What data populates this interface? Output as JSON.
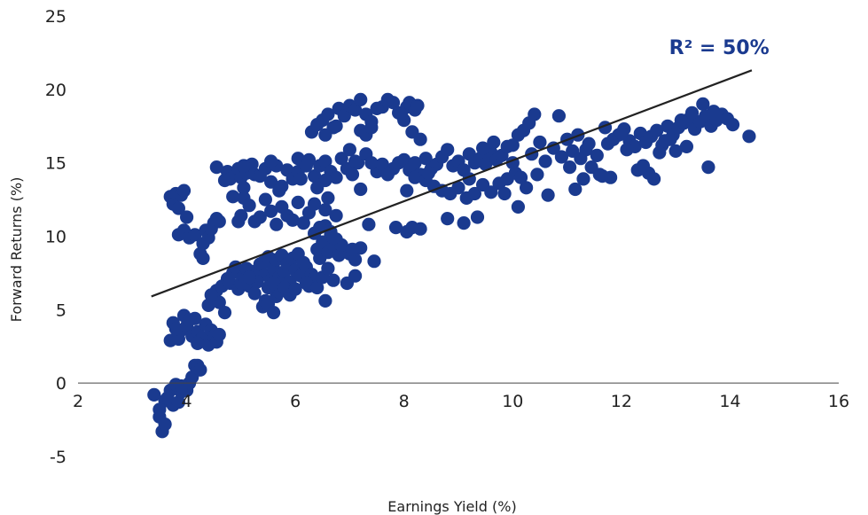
{
  "chart_data": {
    "type": "scatter",
    "xlabel": "Earnings Yield (%)",
    "ylabel": "Forward Returns (%)",
    "xlim": [
      2,
      16
    ],
    "ylim": [
      -5,
      25
    ],
    "xticks": [
      2,
      4,
      6,
      8,
      10,
      12,
      14,
      16
    ],
    "yticks": [
      -5,
      0,
      5,
      10,
      15,
      20,
      25
    ],
    "xtick_labels": [
      "2",
      "4",
      "6",
      "8",
      "10",
      "12",
      "14",
      "16"
    ],
    "ytick_labels": [
      "-5",
      "0",
      "5",
      "10",
      "15",
      "20",
      "25"
    ],
    "grid": false,
    "point_color": "#1a3a8f",
    "trendline": {
      "x": [
        3.35,
        14.4
      ],
      "y": [
        5.9,
        21.3
      ],
      "color": "#222222"
    },
    "annotation": {
      "text": "R² = 50%",
      "x": 13.8,
      "y": 22.9
    },
    "points": [
      [
        3.4,
        -0.8
      ],
      [
        3.5,
        -2.3
      ],
      [
        3.55,
        -3.3
      ],
      [
        3.6,
        -1.2
      ],
      [
        3.5,
        -1.8
      ],
      [
        3.6,
        -2.8
      ],
      [
        3.7,
        -0.5
      ],
      [
        3.75,
        -1.5
      ],
      [
        3.8,
        -0.3
      ],
      [
        3.65,
        -1.0
      ],
      [
        3.85,
        -1.3
      ],
      [
        3.9,
        -0.6
      ],
      [
        4.0,
        -0.5
      ],
      [
        4.05,
        0.0
      ],
      [
        4.1,
        0.4
      ],
      [
        4.15,
        1.2
      ],
      [
        4.2,
        1.2
      ],
      [
        4.25,
        0.9
      ],
      [
        3.8,
        -0.1
      ],
      [
        3.9,
        -0.2
      ],
      [
        3.7,
        2.9
      ],
      [
        3.75,
        4.1
      ],
      [
        3.85,
        3.0
      ],
      [
        3.9,
        3.6
      ],
      [
        3.95,
        4.6
      ],
      [
        4.0,
        3.9
      ],
      [
        4.1,
        3.2
      ],
      [
        4.15,
        4.4
      ],
      [
        4.2,
        3.5
      ],
      [
        4.25,
        2.9
      ],
      [
        4.3,
        3.1
      ],
      [
        4.35,
        4.0
      ],
      [
        4.4,
        2.6
      ],
      [
        4.45,
        3.6
      ],
      [
        4.5,
        3.2
      ],
      [
        4.55,
        2.8
      ],
      [
        4.6,
        3.3
      ],
      [
        4.05,
        4.3
      ],
      [
        3.8,
        3.7
      ],
      [
        4.2,
        2.7
      ],
      [
        3.7,
        12.7
      ],
      [
        3.75,
        12.2
      ],
      [
        3.8,
        12.9
      ],
      [
        3.85,
        11.9
      ],
      [
        3.9,
        12.8
      ],
      [
        3.95,
        13.1
      ],
      [
        4.0,
        11.3
      ],
      [
        3.85,
        10.1
      ],
      [
        3.95,
        10.4
      ],
      [
        4.05,
        9.9
      ],
      [
        4.15,
        10.1
      ],
      [
        4.25,
        8.8
      ],
      [
        4.3,
        8.5
      ],
      [
        4.35,
        10.4
      ],
      [
        4.4,
        9.9
      ],
      [
        4.45,
        10.5
      ],
      [
        4.5,
        10.9
      ],
      [
        4.55,
        11.2
      ],
      [
        4.3,
        9.5
      ],
      [
        4.6,
        11.0
      ],
      [
        4.4,
        5.3
      ],
      [
        4.5,
        5.8
      ],
      [
        4.55,
        6.3
      ],
      [
        4.6,
        5.5
      ],
      [
        4.65,
        6.6
      ],
      [
        4.7,
        4.8
      ],
      [
        4.75,
        7.1
      ],
      [
        4.8,
        6.8
      ],
      [
        4.85,
        7.5
      ],
      [
        4.9,
        7.9
      ],
      [
        4.95,
        6.4
      ],
      [
        5.0,
        6.8
      ],
      [
        5.05,
        7.3
      ],
      [
        5.1,
        7.8
      ],
      [
        5.15,
        6.6
      ],
      [
        5.2,
        7.6
      ],
      [
        5.25,
        6.9
      ],
      [
        5.3,
        7.5
      ],
      [
        5.35,
        8.1
      ],
      [
        4.45,
        6.0
      ],
      [
        5.4,
        8.2
      ],
      [
        5.45,
        7.4
      ],
      [
        5.5,
        8.6
      ],
      [
        5.55,
        7.0
      ],
      [
        5.6,
        7.8
      ],
      [
        5.65,
        8.4
      ],
      [
        5.7,
        7.2
      ],
      [
        5.75,
        8.7
      ],
      [
        5.8,
        7.6
      ],
      [
        5.85,
        8.1
      ],
      [
        5.9,
        6.9
      ],
      [
        5.95,
        8.5
      ],
      [
        6.0,
        7.7
      ],
      [
        6.05,
        8.8
      ],
      [
        6.1,
        7.3
      ],
      [
        6.15,
        8.2
      ],
      [
        6.2,
        7.9
      ],
      [
        6.25,
        6.6
      ],
      [
        6.3,
        7.4
      ],
      [
        6.35,
        7.1
      ],
      [
        5.4,
        5.2
      ],
      [
        5.45,
        5.6
      ],
      [
        5.5,
        5.4
      ],
      [
        5.6,
        4.8
      ],
      [
        5.65,
        5.9
      ],
      [
        5.7,
        6.2
      ],
      [
        5.5,
        6.5
      ],
      [
        5.3,
        6.9
      ],
      [
        5.25,
        6.1
      ],
      [
        5.15,
        7.2
      ],
      [
        5.6,
        6.8
      ],
      [
        5.8,
        6.5
      ],
      [
        5.9,
        6.0
      ],
      [
        6.0,
        6.4
      ],
      [
        6.2,
        6.8
      ],
      [
        6.4,
        6.5
      ],
      [
        6.5,
        7.2
      ],
      [
        6.6,
        7.8
      ],
      [
        6.7,
        7.0
      ],
      [
        6.55,
        5.6
      ],
      [
        6.4,
        9.1
      ],
      [
        6.45,
        8.5
      ],
      [
        6.5,
        9.6
      ],
      [
        6.6,
        8.9
      ],
      [
        6.7,
        9.4
      ],
      [
        6.8,
        8.7
      ],
      [
        6.9,
        9.0
      ],
      [
        7.0,
        8.8
      ],
      [
        7.1,
        8.4
      ],
      [
        7.2,
        9.2
      ],
      [
        6.35,
        10.2
      ],
      [
        6.55,
        10.7
      ],
      [
        6.65,
        10.1
      ],
      [
        6.75,
        9.8
      ],
      [
        6.85,
        9.4
      ],
      [
        7.05,
        9.1
      ],
      [
        7.45,
        8.3
      ],
      [
        6.95,
        6.8
      ],
      [
        7.1,
        7.3
      ],
      [
        6.7,
        9.9
      ],
      [
        5.0,
        11.4
      ],
      [
        5.05,
        12.6
      ],
      [
        5.15,
        12.1
      ],
      [
        5.25,
        11.0
      ],
      [
        5.35,
        11.3
      ],
      [
        5.45,
        12.5
      ],
      [
        5.55,
        11.7
      ],
      [
        5.65,
        10.8
      ],
      [
        5.75,
        12.0
      ],
      [
        5.85,
        11.4
      ],
      [
        5.95,
        11.1
      ],
      [
        6.05,
        12.3
      ],
      [
        6.15,
        10.9
      ],
      [
        6.25,
        11.6
      ],
      [
        6.35,
        12.2
      ],
      [
        6.45,
        10.6
      ],
      [
        6.55,
        11.8
      ],
      [
        6.65,
        10.3
      ],
      [
        6.75,
        11.4
      ],
      [
        4.95,
        11.0
      ],
      [
        4.7,
        13.8
      ],
      [
        4.75,
        14.4
      ],
      [
        4.8,
        13.9
      ],
      [
        4.85,
        12.7
      ],
      [
        4.9,
        14.2
      ],
      [
        4.95,
        14.6
      ],
      [
        5.0,
        14.0
      ],
      [
        5.05,
        13.3
      ],
      [
        5.1,
        14.3
      ],
      [
        5.2,
        14.9
      ],
      [
        5.25,
        14.2
      ],
      [
        5.35,
        14.1
      ],
      [
        5.45,
        14.6
      ],
      [
        5.55,
        13.7
      ],
      [
        5.65,
        14.8
      ],
      [
        5.75,
        13.4
      ],
      [
        5.85,
        14.5
      ],
      [
        5.95,
        13.9
      ],
      [
        6.05,
        14.4
      ],
      [
        6.15,
        15.0
      ],
      [
        6.25,
        15.2
      ],
      [
        6.35,
        14.1
      ],
      [
        6.45,
        14.8
      ],
      [
        6.55,
        15.1
      ],
      [
        6.65,
        14.4
      ],
      [
        6.75,
        14.0
      ],
      [
        6.85,
        15.3
      ],
      [
        6.95,
        14.6
      ],
      [
        7.05,
        14.2
      ],
      [
        7.15,
        15.0
      ],
      [
        4.55,
        14.7
      ],
      [
        5.05,
        14.8
      ],
      [
        5.55,
        15.1
      ],
      [
        6.05,
        15.3
      ],
      [
        6.55,
        13.8
      ],
      [
        6.6,
        12.6
      ],
      [
        6.4,
        13.3
      ],
      [
        6.1,
        13.9
      ],
      [
        5.7,
        13.1
      ],
      [
        6.2,
        14.8
      ],
      [
        6.3,
        17.1
      ],
      [
        6.4,
        17.6
      ],
      [
        6.5,
        17.9
      ],
      [
        6.6,
        18.3
      ],
      [
        6.7,
        17.4
      ],
      [
        6.8,
        18.7
      ],
      [
        6.9,
        18.2
      ],
      [
        7.0,
        18.9
      ],
      [
        7.1,
        18.6
      ],
      [
        7.2,
        19.3
      ],
      [
        7.3,
        18.3
      ],
      [
        7.4,
        17.8
      ],
      [
        7.2,
        17.2
      ],
      [
        7.3,
        16.9
      ],
      [
        7.4,
        17.4
      ],
      [
        6.75,
        17.5
      ],
      [
        6.55,
        16.9
      ],
      [
        7.8,
        19.1
      ],
      [
        7.9,
        18.4
      ],
      [
        8.0,
        17.9
      ],
      [
        8.05,
        18.8
      ],
      [
        8.1,
        19.1
      ],
      [
        8.2,
        18.6
      ],
      [
        8.25,
        18.9
      ],
      [
        8.15,
        17.1
      ],
      [
        8.3,
        16.6
      ],
      [
        7.7,
        19.3
      ],
      [
        7.6,
        18.8
      ],
      [
        7.95,
        18.3
      ],
      [
        7.5,
        18.7
      ],
      [
        7.0,
        15.9
      ],
      [
        7.1,
        15.1
      ],
      [
        7.3,
        15.6
      ],
      [
        7.5,
        14.4
      ],
      [
        7.6,
        14.9
      ],
      [
        7.8,
        14.6
      ],
      [
        7.9,
        15.0
      ],
      [
        8.0,
        15.2
      ],
      [
        7.7,
        14.2
      ],
      [
        7.4,
        15.0
      ],
      [
        8.1,
        14.5
      ],
      [
        8.2,
        15.0
      ],
      [
        8.3,
        14.2
      ],
      [
        8.4,
        15.3
      ],
      [
        8.5,
        14.6
      ],
      [
        8.6,
        14.9
      ],
      [
        8.7,
        15.4
      ],
      [
        8.8,
        15.9
      ],
      [
        8.9,
        14.8
      ],
      [
        9.0,
        15.1
      ],
      [
        9.1,
        14.5
      ],
      [
        9.2,
        15.6
      ],
      [
        9.3,
        15.0
      ],
      [
        9.4,
        15.3
      ],
      [
        9.5,
        14.9
      ],
      [
        9.6,
        15.7
      ],
      [
        9.7,
        15.2
      ],
      [
        9.8,
        15.5
      ],
      [
        9.9,
        16.1
      ],
      [
        10.0,
        15.0
      ],
      [
        8.2,
        14.0
      ],
      [
        8.4,
        13.8
      ],
      [
        8.55,
        13.4
      ],
      [
        8.7,
        13.1
      ],
      [
        8.85,
        12.9
      ],
      [
        9.0,
        13.3
      ],
      [
        9.15,
        12.6
      ],
      [
        9.3,
        12.9
      ],
      [
        9.45,
        13.5
      ],
      [
        9.6,
        13.0
      ],
      [
        9.75,
        13.6
      ],
      [
        9.9,
        13.9
      ],
      [
        10.05,
        14.3
      ],
      [
        10.15,
        14.0
      ],
      [
        10.25,
        13.3
      ],
      [
        8.05,
        13.1
      ],
      [
        7.2,
        13.2
      ],
      [
        8.45,
        14.3
      ],
      [
        9.2,
        13.9
      ],
      [
        9.85,
        12.9
      ],
      [
        7.85,
        10.6
      ],
      [
        8.05,
        10.3
      ],
      [
        8.15,
        10.6
      ],
      [
        8.3,
        10.5
      ],
      [
        8.8,
        11.2
      ],
      [
        9.1,
        10.9
      ],
      [
        9.35,
        11.3
      ],
      [
        10.1,
        12.0
      ],
      [
        7.35,
        10.8
      ],
      [
        10.65,
        12.8
      ],
      [
        10.0,
        16.2
      ],
      [
        10.1,
        16.9
      ],
      [
        10.2,
        17.2
      ],
      [
        10.3,
        17.7
      ],
      [
        10.4,
        18.3
      ],
      [
        10.5,
        16.4
      ],
      [
        10.6,
        15.1
      ],
      [
        10.75,
        16.0
      ],
      [
        10.9,
        15.4
      ],
      [
        11.0,
        16.6
      ],
      [
        11.1,
        15.8
      ],
      [
        11.2,
        16.9
      ],
      [
        11.25,
        15.3
      ],
      [
        11.35,
        15.9
      ],
      [
        11.45,
        14.7
      ],
      [
        11.55,
        15.5
      ],
      [
        11.65,
        14.1
      ],
      [
        11.75,
        16.3
      ],
      [
        11.85,
        16.6
      ],
      [
        11.95,
        16.9
      ],
      [
        12.05,
        17.3
      ],
      [
        12.15,
        16.5
      ],
      [
        12.25,
        16.1
      ],
      [
        12.35,
        17.0
      ],
      [
        12.45,
        16.4
      ],
      [
        12.55,
        16.8
      ],
      [
        12.65,
        17.2
      ],
      [
        12.75,
        16.2
      ],
      [
        12.85,
        17.5
      ],
      [
        12.95,
        16.9
      ],
      [
        13.05,
        17.4
      ],
      [
        13.15,
        17.7
      ],
      [
        13.25,
        18.0
      ],
      [
        13.35,
        17.3
      ],
      [
        13.45,
        17.8
      ],
      [
        13.55,
        18.2
      ],
      [
        13.65,
        17.5
      ],
      [
        13.75,
        17.9
      ],
      [
        13.85,
        18.3
      ],
      [
        13.95,
        18.0
      ],
      [
        14.05,
        17.6
      ],
      [
        13.7,
        18.5
      ],
      [
        13.5,
        19.0
      ],
      [
        13.3,
        18.4
      ],
      [
        13.1,
        17.9
      ],
      [
        12.9,
        16.6
      ],
      [
        12.5,
        14.3
      ],
      [
        12.6,
        13.9
      ],
      [
        11.3,
        13.9
      ],
      [
        11.15,
        13.2
      ],
      [
        10.85,
        18.2
      ],
      [
        11.05,
        14.7
      ],
      [
        11.4,
        16.3
      ],
      [
        11.6,
        14.2
      ],
      [
        11.8,
        14.0
      ],
      [
        12.1,
        15.9
      ],
      [
        12.3,
        14.5
      ],
      [
        12.7,
        15.7
      ],
      [
        12.8,
        16.5
      ],
      [
        13.0,
        15.8
      ],
      [
        13.2,
        16.1
      ],
      [
        13.6,
        14.7
      ],
      [
        14.35,
        16.8
      ],
      [
        11.7,
        17.4
      ],
      [
        12.0,
        17.0
      ],
      [
        12.4,
        14.8
      ],
      [
        10.45,
        14.2
      ],
      [
        10.35,
        15.6
      ],
      [
        9.65,
        16.4
      ],
      [
        9.45,
        16.0
      ]
    ]
  }
}
